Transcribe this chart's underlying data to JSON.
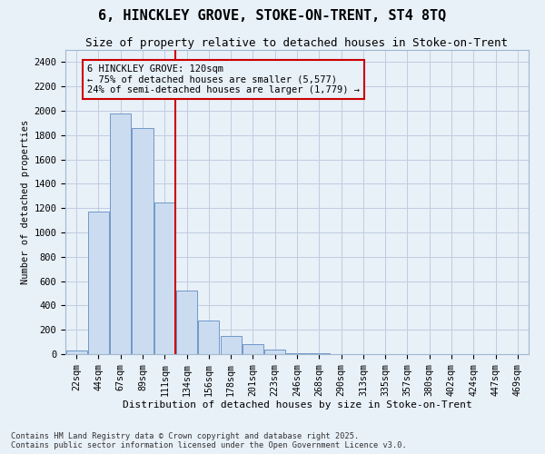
{
  "title_line1": "6, HINCKLEY GROVE, STOKE-ON-TRENT, ST4 8TQ",
  "title_line2": "Size of property relative to detached houses in Stoke-on-Trent",
  "xlabel": "Distribution of detached houses by size in Stoke-on-Trent",
  "ylabel": "Number of detached properties",
  "categories": [
    "22sqm",
    "44sqm",
    "67sqm",
    "89sqm",
    "111sqm",
    "134sqm",
    "156sqm",
    "178sqm",
    "201sqm",
    "223sqm",
    "246sqm",
    "268sqm",
    "290sqm",
    "313sqm",
    "335sqm",
    "357sqm",
    "380sqm",
    "402sqm",
    "424sqm",
    "447sqm",
    "469sqm"
  ],
  "values": [
    30,
    1175,
    1975,
    1860,
    1250,
    525,
    275,
    150,
    85,
    40,
    10,
    5,
    2,
    0,
    0,
    0,
    0,
    0,
    0,
    0,
    0
  ],
  "bar_color": "#ccdcf0",
  "bar_edge_color": "#7098c8",
  "vline_x": 4.5,
  "vline_color": "#cc0000",
  "annotation_text": "6 HINCKLEY GROVE: 120sqm\n← 75% of detached houses are smaller (5,577)\n24% of semi-detached houses are larger (1,779) →",
  "annotation_box_color": "#cc0000",
  "ylim": [
    0,
    2500
  ],
  "yticks": [
    0,
    200,
    400,
    600,
    800,
    1000,
    1200,
    1400,
    1600,
    1800,
    2000,
    2200,
    2400
  ],
  "grid_color": "#c0cce0",
  "background_color": "#e8f0f8",
  "footer_line1": "Contains HM Land Registry data © Crown copyright and database right 2025.",
  "footer_line2": "Contains public sector information licensed under the Open Government Licence v3.0."
}
